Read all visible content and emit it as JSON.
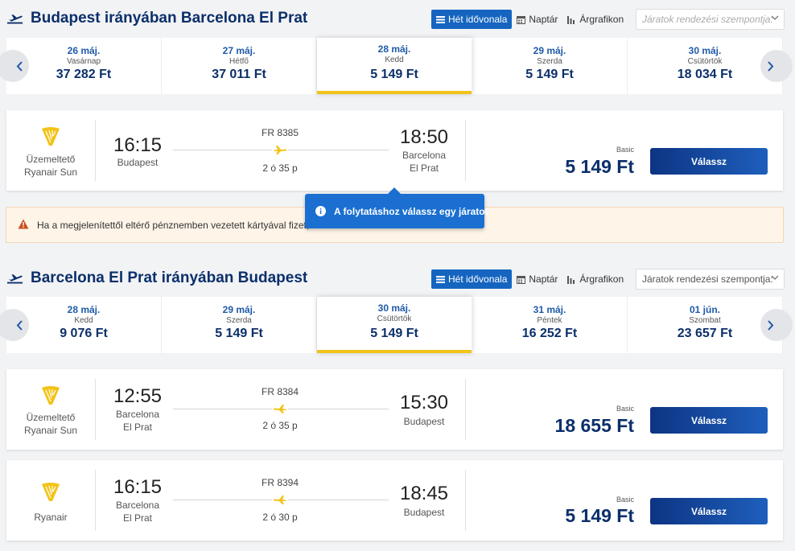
{
  "outbound": {
    "title": "Budapest irányában Barcelona El Prat",
    "view_buttons": [
      "Hét idővonala",
      "Naptár",
      "Árgrafikon"
    ],
    "sort_placeholder": "Járatok rendezési szempontja:",
    "dates": [
      {
        "date": "26 máj.",
        "day": "Vasárnap",
        "price": "37 282 Ft"
      },
      {
        "date": "27 máj.",
        "day": "Hétfő",
        "price": "37 011 Ft"
      },
      {
        "date": "28 máj.",
        "day": "Kedd",
        "price": "5 149 Ft",
        "active": true
      },
      {
        "date": "29 máj.",
        "day": "Szerda",
        "price": "5 149 Ft"
      },
      {
        "date": "30 máj.",
        "day": "Csütörtök",
        "price": "18 034 Ft"
      }
    ],
    "flights": [
      {
        "carrier": [
          "Üzemeltető",
          "Ryanair Sun"
        ],
        "dep_time": "16:15",
        "dep_place": [
          "Budapest"
        ],
        "flight_no": "FR 8385",
        "duration": "2 ó 35 p",
        "arr_time": "18:50",
        "arr_place": [
          "Barcelona",
          "El Prat"
        ],
        "fare": "Basic",
        "price": "5 149 Ft",
        "button": "Válassz"
      }
    ]
  },
  "notice": {
    "text": "Ha a megjelenítettől eltérő pénznemben vezetett kártyával fizet, a"
  },
  "tooltip": {
    "text": "A folytatáshoz válassz egy járatot"
  },
  "return": {
    "title": "Barcelona El Prat irányában Budapest",
    "view_buttons": [
      "Hét idővonala",
      "Naptár",
      "Árgrafikon"
    ],
    "sort_placeholder": "Járatok rendezési szempontja:",
    "dates": [
      {
        "date": "28 máj.",
        "day": "Kedd",
        "price": "9 076 Ft"
      },
      {
        "date": "29 máj.",
        "day": "Szerda",
        "price": "5 149 Ft"
      },
      {
        "date": "30 máj.",
        "day": "Csütörtök",
        "price": "5 149 Ft",
        "active": true
      },
      {
        "date": "31 máj.",
        "day": "Péntek",
        "price": "16 252 Ft"
      },
      {
        "date": "01 jún.",
        "day": "Szombat",
        "price": "23 657 Ft"
      }
    ],
    "flights": [
      {
        "carrier": [
          "Üzemeltető",
          "Ryanair Sun"
        ],
        "dep_time": "12:55",
        "dep_place": [
          "Barcelona",
          "El Prat"
        ],
        "flight_no": "FR 8384",
        "duration": "2 ó 35 p",
        "arr_time": "15:30",
        "arr_place": [
          "Budapest"
        ],
        "fare": "Basic",
        "price": "18 655 Ft",
        "button": "Válassz"
      },
      {
        "carrier": [
          "Ryanair"
        ],
        "dep_time": "16:15",
        "dep_place": [
          "Barcelona",
          "El Prat"
        ],
        "flight_no": "FR 8394",
        "duration": "2 ó 30 p",
        "arr_time": "18:45",
        "arr_place": [
          "Budapest"
        ],
        "fare": "Basic",
        "price": "5 149 Ft",
        "button": "Válassz"
      }
    ]
  },
  "colors": {
    "brand_navy": "#0b2f6a",
    "link_blue": "#1f5aa8",
    "active_blue": "#1565c0",
    "ryanair_yellow": "#f2c318"
  }
}
